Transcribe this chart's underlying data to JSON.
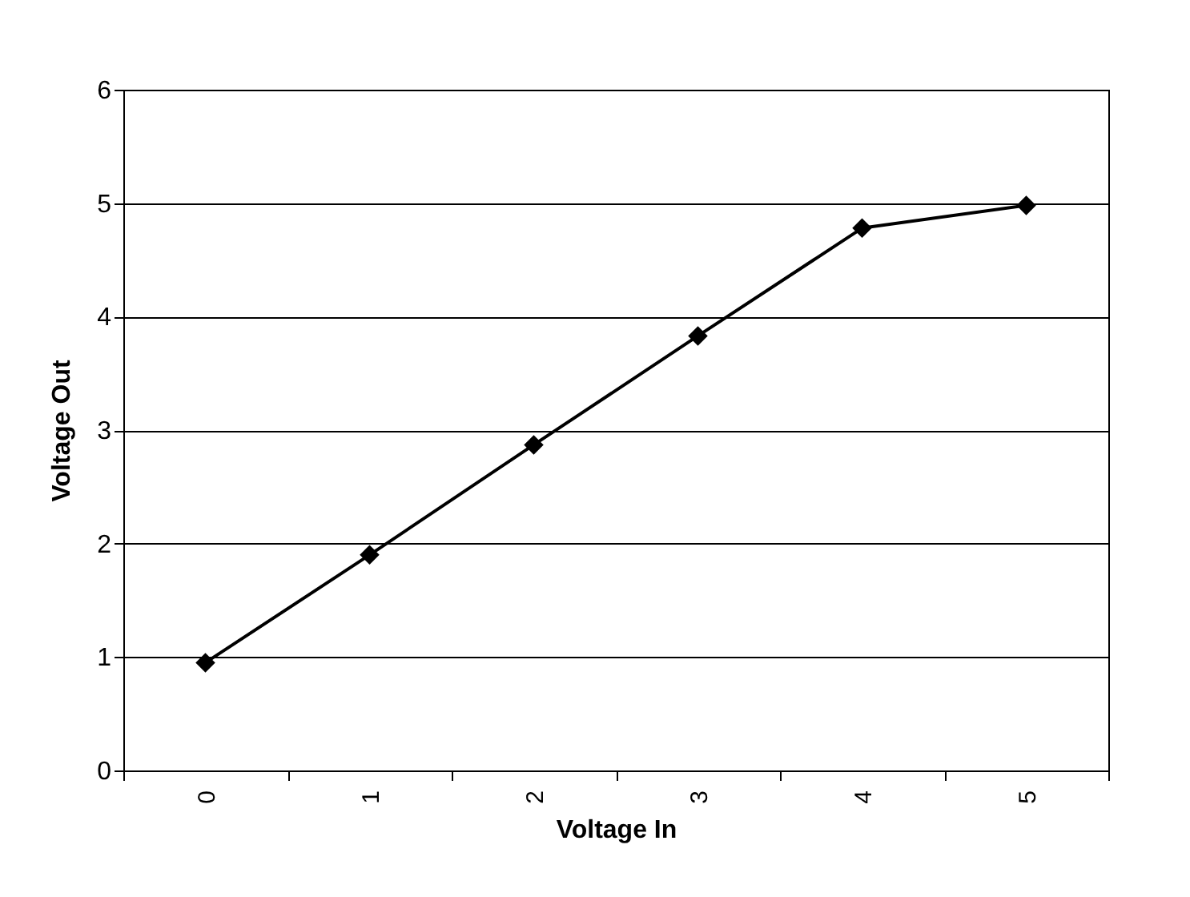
{
  "chart_data": {
    "type": "line",
    "xlabel": "Voltage In",
    "ylabel": "Voltage Out",
    "categories": [
      "0",
      "1",
      "2",
      "3",
      "4",
      "5"
    ],
    "series": [
      {
        "color": "#000000",
        "values": [
          0.95,
          1.9,
          2.87,
          3.83,
          4.78,
          4.98
        ]
      }
    ],
    "ylim": [
      0,
      6
    ],
    "yticks": [
      0,
      1,
      2,
      3,
      4,
      5,
      6
    ],
    "grid": "y",
    "legend": false,
    "marker": "diamond",
    "line_style": "solid"
  }
}
